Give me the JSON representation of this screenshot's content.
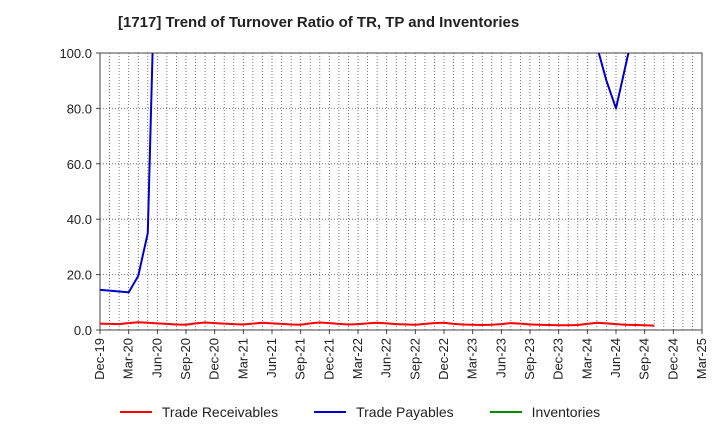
{
  "title": "[1717]  Trend of Turnover Ratio of TR, TP and Inventories",
  "chart_data": {
    "type": "line",
    "title": "[1717]  Trend of Turnover Ratio of TR, TP and Inventories",
    "xlabel": "",
    "ylabel": "",
    "ylim": [
      0,
      100
    ],
    "yticks": [
      "0.0",
      "20.0",
      "40.0",
      "60.0",
      "80.0",
      "100.0"
    ],
    "x": [
      "Dec-19",
      "Mar-20",
      "Jun-20",
      "Sep-20",
      "Dec-20",
      "Mar-21",
      "Jun-21",
      "Sep-21",
      "Dec-21",
      "Mar-22",
      "Jun-22",
      "Sep-22",
      "Dec-22",
      "Mar-23",
      "Jun-23",
      "Sep-23",
      "Dec-23",
      "Mar-24",
      "Jun-24",
      "Sep-24",
      "Dec-24",
      "Mar-25"
    ],
    "grid": true,
    "legend_position": "bottom",
    "series": [
      {
        "name": "Trade Receivables",
        "color": "#ff0000",
        "points": [
          [
            0,
            2.3
          ],
          [
            1,
            2.2
          ],
          [
            2,
            2.1
          ],
          [
            3,
            2.5
          ],
          [
            4,
            2.8
          ],
          [
            5,
            2.6
          ],
          [
            6,
            2.4
          ],
          [
            7,
            2.2
          ],
          [
            8,
            2.0
          ],
          [
            9,
            1.9
          ],
          [
            10,
            2.4
          ],
          [
            11,
            2.7
          ],
          [
            12,
            2.5
          ],
          [
            13,
            2.3
          ],
          [
            14,
            2.1
          ],
          [
            15,
            2.0
          ],
          [
            16,
            2.3
          ],
          [
            17,
            2.6
          ],
          [
            18,
            2.4
          ],
          [
            19,
            2.2
          ],
          [
            20,
            2.0
          ],
          [
            21,
            1.9
          ],
          [
            22,
            2.4
          ],
          [
            23,
            2.7
          ],
          [
            24,
            2.5
          ],
          [
            25,
            2.2
          ],
          [
            26,
            2.0
          ],
          [
            27,
            2.1
          ],
          [
            28,
            2.4
          ],
          [
            29,
            2.6
          ],
          [
            30,
            2.4
          ],
          [
            31,
            2.1
          ],
          [
            32,
            2.0
          ],
          [
            33,
            1.9
          ],
          [
            34,
            2.2
          ],
          [
            35,
            2.5
          ],
          [
            36,
            2.6
          ],
          [
            37,
            2.2
          ],
          [
            38,
            2.0
          ],
          [
            39,
            1.9
          ],
          [
            40,
            1.8
          ],
          [
            41,
            1.9
          ],
          [
            42,
            2.1
          ],
          [
            43,
            2.5
          ],
          [
            44,
            2.3
          ],
          [
            45,
            2.0
          ],
          [
            46,
            1.9
          ],
          [
            47,
            1.8
          ],
          [
            48,
            1.7
          ],
          [
            49,
            1.7
          ],
          [
            50,
            1.8
          ],
          [
            51,
            2.2
          ],
          [
            52,
            2.6
          ],
          [
            53,
            2.4
          ],
          [
            54,
            2.1
          ],
          [
            55,
            1.9
          ],
          [
            56,
            1.8
          ],
          [
            57,
            1.7
          ],
          [
            58,
            1.6
          ]
        ]
      },
      {
        "name": "Trade Payables",
        "color": "#0000cc",
        "segments": [
          [
            [
              0,
              14.5
            ],
            [
              1,
              14.2
            ],
            [
              2,
              13.9
            ],
            [
              3,
              13.6
            ],
            [
              4,
              19.5
            ],
            [
              5,
              35.0
            ],
            [
              5.5,
              100.0
            ]
          ],
          [
            [
              52.2,
              100.0
            ],
            [
              53,
              90.0
            ],
            [
              54,
              80.0
            ],
            [
              55.3,
              100.0
            ]
          ]
        ]
      },
      {
        "name": "Inventories",
        "color": "#008800",
        "points": []
      }
    ]
  }
}
